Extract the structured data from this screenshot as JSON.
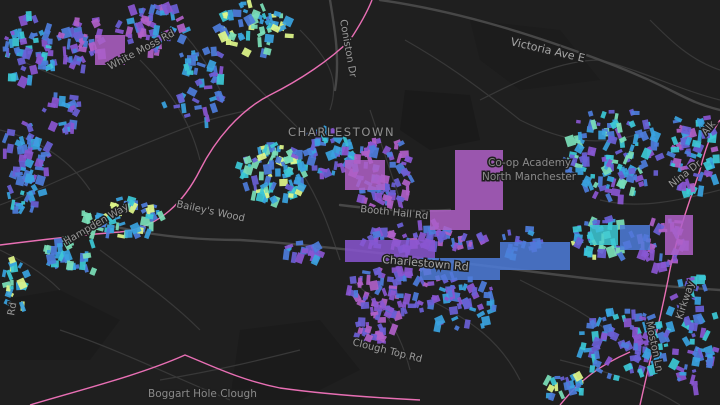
{
  "map": {
    "theme": "dark",
    "colors": {
      "background": "#1f1f1f",
      "road": "#3a3a3a",
      "major_road": "#4a4a4a",
      "boundary": "#e86fb4",
      "label": "#9a9a9a",
      "ramp": [
        "#e0f78a",
        "#7be0b8",
        "#3cc9d6",
        "#3aa3e0",
        "#4d7ddb",
        "#6a5fd6",
        "#8a56d1",
        "#b060c8"
      ]
    },
    "labels": {
      "charlestown": "CHARLESTOWN",
      "victoria_ave_e": "Victoria Ave E",
      "white_moss_rd": "White Moss Rd",
      "coniston_dr": "Coniston Dr",
      "co_op_academy_line1": "Co-op Academy",
      "co_op_academy_line2": "North Manchester",
      "booth_hall_rd": "Booth Hall Rd",
      "charlestown_rd": "Charlestown Rd",
      "baileys_wood": "Bailey's Wood",
      "hampden_way": "Hampden Way",
      "clough_top_rd": "Clough Top Rd",
      "boggart_hole_clough": "Boggart Hole Clough",
      "nina_dr": "Nina Dr",
      "kirkway": "Kirkway",
      "moston_ln": "Moston Ln",
      "rd_edge": "Rd",
      "alk_edge": "Alk"
    }
  }
}
